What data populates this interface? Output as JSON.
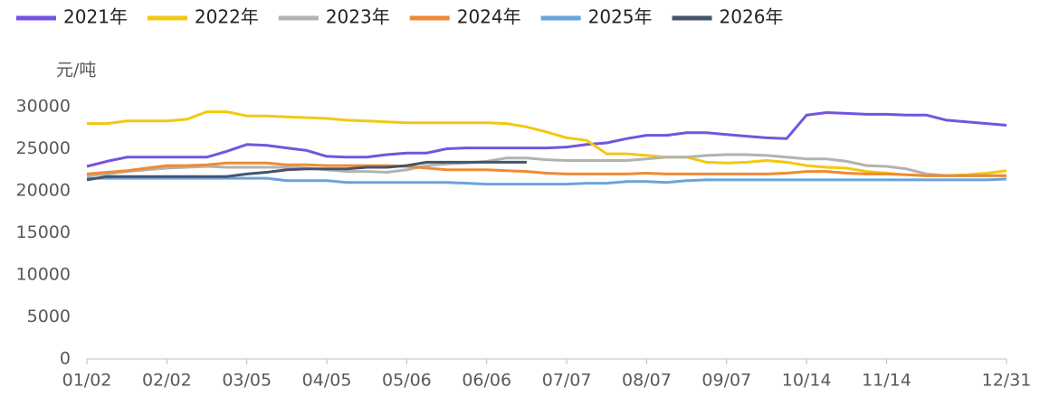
{
  "chart_data": {
    "type": "line",
    "y_label": "元/吨",
    "categories": [
      "01/02",
      null,
      null,
      null,
      "02/02",
      null,
      null,
      null,
      "03/05",
      null,
      null,
      null,
      "04/05",
      null,
      null,
      null,
      "05/06",
      null,
      null,
      null,
      "06/06",
      null,
      null,
      null,
      "07/07",
      null,
      null,
      null,
      "08/07",
      null,
      null,
      null,
      "09/07",
      null,
      null,
      null,
      "10/14",
      null,
      null,
      null,
      "11/14",
      null,
      null,
      null,
      null,
      null,
      "12/31"
    ],
    "ylim": [
      0,
      30000
    ],
    "yticks": [
      0,
      5000,
      10000,
      15000,
      20000,
      25000,
      30000
    ],
    "grid": false,
    "legend": "top",
    "series": [
      {
        "name": "2021年",
        "color": "#7454e0",
        "values": [
          22900,
          23500,
          24000,
          24000,
          24000,
          24000,
          24000,
          24700,
          25500,
          25400,
          25100,
          24800,
          24100,
          24000,
          24000,
          24300,
          24500,
          24500,
          25000,
          25100,
          25100,
          25100,
          25100,
          25100,
          25200,
          25500,
          25700,
          26200,
          26600,
          26600,
          26900,
          26900,
          26700,
          26500,
          26300,
          26200,
          29000,
          29300,
          29200,
          29100,
          29100,
          29000,
          29000,
          28400,
          28200,
          28000,
          27800
        ]
      },
      {
        "name": "2022年",
        "color": "#f2c811",
        "values": [
          28000,
          28000,
          28300,
          28300,
          28300,
          28500,
          29400,
          29400,
          28900,
          28900,
          28800,
          28700,
          28600,
          28400,
          28300,
          28200,
          28100,
          28100,
          28100,
          28100,
          28100,
          28000,
          27600,
          27000,
          26300,
          26000,
          24400,
          24400,
          24200,
          24000,
          24000,
          23400,
          23300,
          23400,
          23600,
          23400,
          23000,
          22800,
          22700,
          22300,
          22100,
          21900,
          21800,
          21800,
          21900,
          22100,
          22400
        ]
      },
      {
        "name": "2023年",
        "color": "#b2b2b2",
        "values": [
          21800,
          22000,
          22300,
          22500,
          22700,
          22800,
          22900,
          22800,
          22800,
          22800,
          22800,
          22700,
          22500,
          22300,
          22300,
          22200,
          22500,
          23000,
          23200,
          23300,
          23500,
          23900,
          23900,
          23700,
          23600,
          23600,
          23600,
          23600,
          23800,
          24000,
          24000,
          24200,
          24300,
          24300,
          24200,
          24000,
          23800,
          23800,
          23500,
          23000,
          22900,
          22600,
          22000,
          21800,
          21800,
          21800,
          21800
        ]
      },
      {
        "name": "2024年",
        "color": "#ef8a33",
        "values": [
          22000,
          22200,
          22400,
          22700,
          23000,
          23000,
          23100,
          23300,
          23300,
          23300,
          23100,
          23100,
          23000,
          23000,
          23000,
          23000,
          22900,
          22700,
          22500,
          22500,
          22500,
          22400,
          22300,
          22100,
          22000,
          22000,
          22000,
          22000,
          22100,
          22000,
          22000,
          22000,
          22000,
          22000,
          22000,
          22100,
          22300,
          22300,
          22100,
          22000,
          22000,
          21900,
          21800,
          21800,
          21800,
          21800,
          21800
        ]
      },
      {
        "name": "2025年",
        "color": "#6aa3dc",
        "values": [
          21500,
          21500,
          21500,
          21500,
          21500,
          21500,
          21500,
          21500,
          21500,
          21500,
          21200,
          21200,
          21200,
          21000,
          21000,
          21000,
          21000,
          21000,
          21000,
          20900,
          20800,
          20800,
          20800,
          20800,
          20800,
          20900,
          20900,
          21100,
          21100,
          21000,
          21200,
          21300,
          21300,
          21300,
          21300,
          21300,
          21300,
          21300,
          21300,
          21300,
          21300,
          21300,
          21300,
          21300,
          21300,
          21300,
          21400
        ]
      },
      {
        "name": "2026年",
        "color": "#45546b",
        "values": [
          21300,
          21700,
          21700,
          21700,
          21700,
          21700,
          21700,
          21700,
          22000,
          22200,
          22500,
          22600,
          22600,
          22600,
          22800,
          22800,
          23000,
          23400,
          23400,
          23400,
          23400,
          23400,
          23400,
          null,
          null,
          null,
          null,
          null,
          null,
          null,
          null,
          null,
          null,
          null,
          null,
          null,
          null,
          null,
          null,
          null,
          null,
          null,
          null,
          null,
          null,
          null,
          null
        ]
      }
    ]
  }
}
